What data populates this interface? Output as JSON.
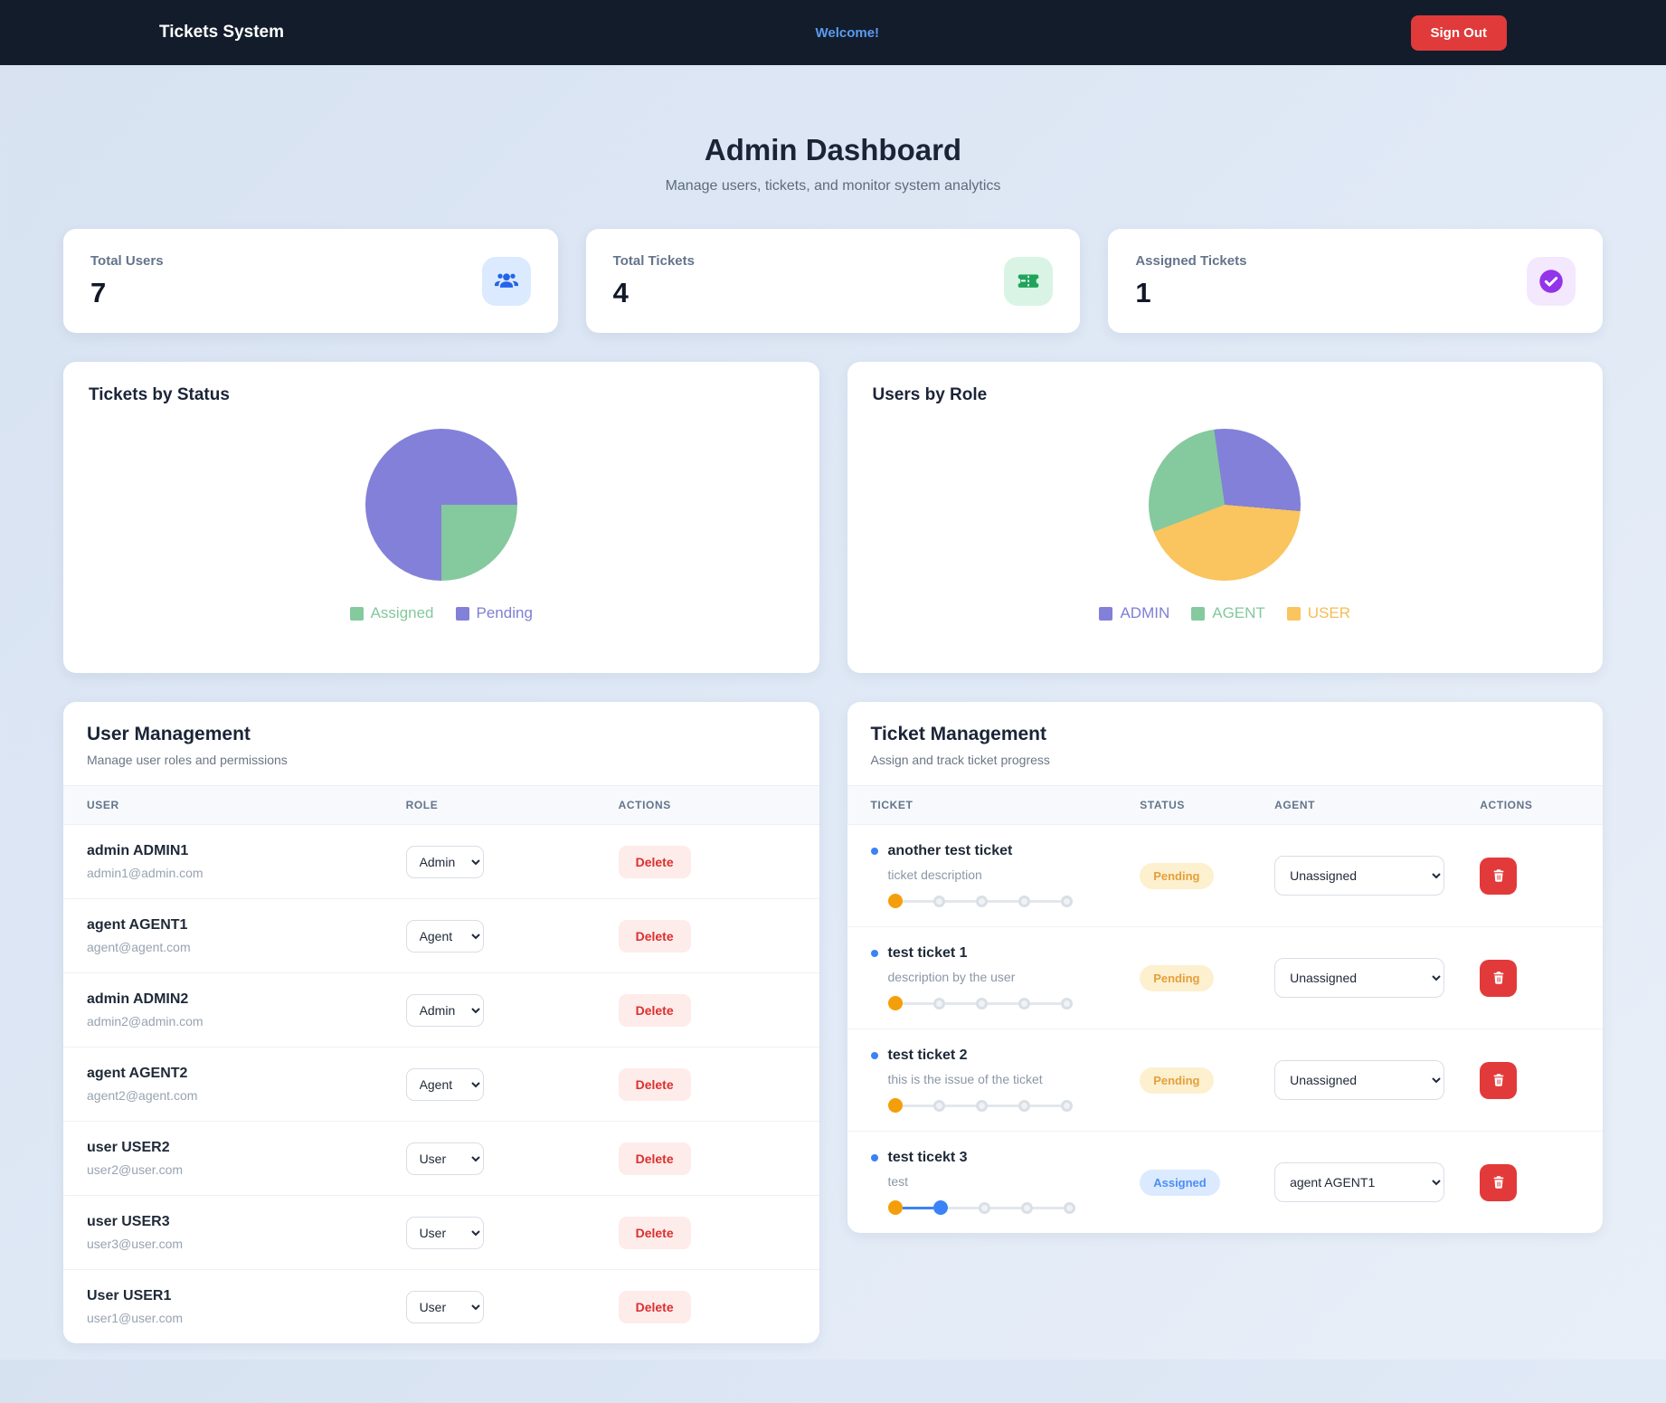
{
  "nav": {
    "brand": "Tickets System",
    "welcome": "Welcome!",
    "signout_label": "Sign Out"
  },
  "hero": {
    "title": "Admin Dashboard",
    "subtitle": "Manage users, tickets, and monitor system analytics"
  },
  "stats": [
    {
      "label": "Total Users",
      "value": "7",
      "icon": "users-icon",
      "icon_bg": "#dbeafe",
      "icon_color": "#2563eb"
    },
    {
      "label": "Total Tickets",
      "value": "4",
      "icon": "ticket-icon",
      "icon_bg": "#d9f4e4",
      "icon_color": "#1fa45b"
    },
    {
      "label": "Assigned Tickets",
      "value": "1",
      "icon": "check-circle-icon",
      "icon_bg": "#f3e8fd",
      "icon_color": "#9333ea"
    }
  ],
  "chart_data": [
    {
      "type": "pie",
      "title": "Tickets by Status",
      "start_deg": 90,
      "segments": [
        {
          "label": "Assigned",
          "value": 1,
          "color": "#85c99e"
        },
        {
          "label": "Pending",
          "value": 3,
          "color": "#8280d8"
        }
      ],
      "legend": [
        {
          "label": "Assigned",
          "color": "#85c99e",
          "text_color": "#84c89c"
        },
        {
          "label": "Pending",
          "color": "#8280d8",
          "text_color": "#7e7ed6"
        }
      ],
      "legend_position": "bottom"
    },
    {
      "type": "pie",
      "title": "Users by Role",
      "start_deg": -8,
      "segments": [
        {
          "label": "ADMIN",
          "value": 2,
          "color": "#8280d8"
        },
        {
          "label": "USER",
          "value": 3,
          "color": "#fac45e"
        },
        {
          "label": "AGENT",
          "value": 2,
          "color": "#85c99e"
        }
      ],
      "legend": [
        {
          "label": "ADMIN",
          "color": "#8280d8",
          "text_color": "#7e7ed6"
        },
        {
          "label": "AGENT",
          "color": "#85c99e",
          "text_color": "#84c89c"
        },
        {
          "label": "USER",
          "color": "#fac45e",
          "text_color": "#f5bd55"
        }
      ],
      "legend_position": "bottom"
    }
  ],
  "user_management": {
    "title": "User Management",
    "subtitle": "Manage user roles and permissions",
    "columns": [
      "USER",
      "ROLE",
      "ACTIONS"
    ],
    "delete_label": "Delete",
    "users": [
      {
        "name": "admin ADMIN1",
        "email": "admin1@admin.com",
        "role": "Admin"
      },
      {
        "name": "agent AGENT1",
        "email": "agent@agent.com",
        "role": "Agent"
      },
      {
        "name": "admin ADMIN2",
        "email": "admin2@admin.com",
        "role": "Admin"
      },
      {
        "name": "agent AGENT2",
        "email": "agent2@agent.com",
        "role": "Agent"
      },
      {
        "name": "user USER2",
        "email": "user2@user.com",
        "role": "User"
      },
      {
        "name": "user USER3",
        "email": "user3@user.com",
        "role": "User"
      },
      {
        "name": "User USER1",
        "email": "user1@user.com",
        "role": "User"
      }
    ]
  },
  "ticket_management": {
    "title": "Ticket Management",
    "subtitle": "Assign and track ticket progress",
    "columns": [
      "TICKET",
      "STATUS",
      "AGENT",
      "ACTIONS"
    ],
    "status_styles": {
      "Pending": {
        "bg": "#fcf0ce",
        "text": "#e59f3c"
      },
      "Assigned": {
        "bg": "#dbeafe",
        "text": "#4c8df6"
      }
    },
    "progress_steps_total": 5,
    "tickets": [
      {
        "title": "another test ticket",
        "description": "ticket description",
        "status": "Pending",
        "agent": "Unassigned",
        "progress_current": 0
      },
      {
        "title": "test ticket 1",
        "description": "description by the user",
        "status": "Pending",
        "agent": "Unassigned",
        "progress_current": 0
      },
      {
        "title": "test ticket 2",
        "description": "this is the issue of the ticket",
        "status": "Pending",
        "agent": "Unassigned",
        "progress_current": 0
      },
      {
        "title": "test ticekt 3",
        "description": "test",
        "status": "Assigned",
        "agent": "agent AGENT1",
        "progress_current": 1
      }
    ]
  }
}
